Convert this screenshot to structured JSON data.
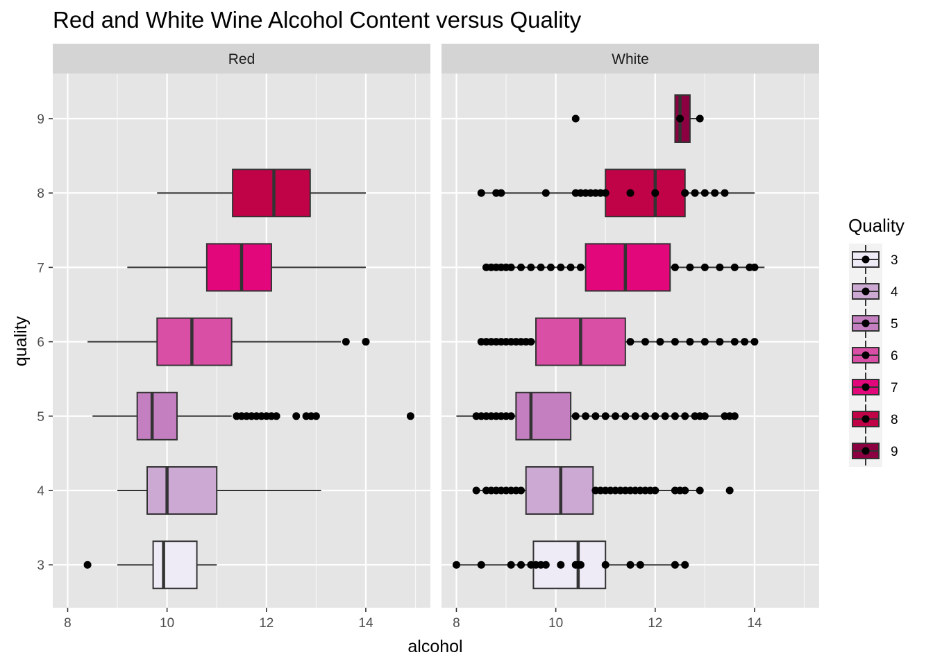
{
  "chart_data": {
    "type": "boxplot",
    "title": "Red and White Wine Alcohol Content versus Quality",
    "xlabel": "alcohol",
    "ylabel": "quality",
    "xlim": [
      7.7,
      15.3
    ],
    "x_ticks": [
      8,
      10,
      12,
      14
    ],
    "x_tick_labels": [
      "8",
      "10",
      "12",
      "14"
    ],
    "y_categories": [
      "3",
      "4",
      "5",
      "6",
      "7",
      "8",
      "9"
    ],
    "legend": {
      "title": "Quality",
      "placement": "right",
      "entries": [
        {
          "label": "3",
          "color": "#efebf6"
        },
        {
          "label": "4",
          "color": "#cba9d3"
        },
        {
          "label": "5",
          "color": "#c37fbf"
        },
        {
          "label": "6",
          "color": "#d94fa6"
        },
        {
          "label": "7",
          "color": "#e2077b"
        },
        {
          "label": "8",
          "color": "#c00246"
        },
        {
          "label": "9",
          "color": "#8a0041"
        }
      ]
    },
    "panels": [
      {
        "name": "Red",
        "boxes": [
          {
            "quality": "3",
            "whisker_low": 9.0,
            "q1": 9.72,
            "median": 9.93,
            "q3": 10.6,
            "whisker_high": 11.0,
            "outliers": [
              8.4
            ]
          },
          {
            "quality": "4",
            "whisker_low": 9.0,
            "q1": 9.6,
            "median": 10.0,
            "q3": 11.0,
            "whisker_high": 13.1,
            "outliers": []
          },
          {
            "quality": "5",
            "whisker_low": 8.5,
            "q1": 9.4,
            "median": 9.7,
            "q3": 10.2,
            "whisker_high": 11.3,
            "outliers": [
              11.4,
              11.5,
              11.6,
              11.7,
              11.8,
              11.9,
              12.0,
              12.1,
              12.2,
              12.6,
              12.8,
              12.9,
              13.0,
              14.9
            ]
          },
          {
            "quality": "6",
            "whisker_low": 8.4,
            "q1": 9.8,
            "median": 10.5,
            "q3": 11.3,
            "whisker_high": 13.5,
            "outliers": [
              13.6,
              14.0,
              14.0
            ]
          },
          {
            "quality": "7",
            "whisker_low": 9.2,
            "q1": 10.8,
            "median": 11.5,
            "q3": 12.1,
            "whisker_high": 14.0,
            "outliers": []
          },
          {
            "quality": "8",
            "whisker_low": 9.8,
            "q1": 11.32,
            "median": 12.15,
            "q3": 12.88,
            "whisker_high": 14.0,
            "outliers": []
          }
        ]
      },
      {
        "name": "White",
        "boxes": [
          {
            "quality": "3",
            "whisker_low": 8.0,
            "q1": 9.55,
            "median": 10.45,
            "q3": 11.0,
            "whisker_high": 12.6,
            "outliers": [
              8.0,
              8.5,
              9.1,
              9.3,
              9.5,
              9.6,
              9.7,
              9.8,
              10.1,
              10.4,
              10.45,
              10.5,
              11.0,
              11.5,
              11.7,
              12.4,
              12.6
            ]
          },
          {
            "quality": "4",
            "whisker_low": 8.4,
            "q1": 9.4,
            "median": 10.1,
            "q3": 10.75,
            "whisker_high": 12.9,
            "outliers": [
              8.4,
              8.6,
              8.7,
              8.8,
              8.9,
              9.0,
              9.1,
              9.2,
              9.3,
              10.8,
              10.9,
              11.0,
              11.1,
              11.2,
              11.3,
              11.4,
              11.5,
              11.6,
              11.7,
              11.8,
              11.9,
              12.0,
              12.4,
              12.5,
              12.6,
              12.9,
              13.5
            ]
          },
          {
            "quality": "5",
            "whisker_low": 8.0,
            "q1": 9.2,
            "median": 9.5,
            "q3": 10.3,
            "whisker_high": 13.6,
            "outliers": [
              8.4,
              8.5,
              8.6,
              8.7,
              8.8,
              8.9,
              9.0,
              9.1,
              10.4,
              10.6,
              10.8,
              11.0,
              11.2,
              11.4,
              11.6,
              11.8,
              12.0,
              12.2,
              12.4,
              12.6,
              12.8,
              12.9,
              13.0,
              13.4,
              13.5,
              13.6
            ]
          },
          {
            "quality": "6",
            "whisker_low": 8.5,
            "q1": 9.6,
            "median": 10.5,
            "q3": 11.4,
            "whisker_high": 14.0,
            "outliers": [
              8.5,
              8.6,
              8.7,
              8.8,
              8.9,
              9.0,
              9.1,
              9.2,
              9.3,
              9.4,
              9.5,
              11.5,
              11.8,
              12.1,
              12.4,
              12.7,
              13.0,
              13.3,
              13.6,
              13.8,
              14.0
            ]
          },
          {
            "quality": "7",
            "whisker_low": 8.6,
            "q1": 10.6,
            "median": 11.4,
            "q3": 12.3,
            "whisker_high": 14.2,
            "outliers": [
              8.6,
              8.7,
              8.8,
              8.9,
              9.0,
              9.1,
              9.3,
              9.5,
              9.7,
              9.9,
              10.1,
              10.3,
              10.5,
              12.4,
              12.7,
              13.0,
              13.3,
              13.6,
              13.9,
              14.0
            ]
          },
          {
            "quality": "8",
            "whisker_low": 8.5,
            "q1": 11.0,
            "median": 12.0,
            "q3": 12.6,
            "whisker_high": 14.0,
            "outliers": [
              8.5,
              8.8,
              8.9,
              9.8,
              10.4,
              10.5,
              10.6,
              10.7,
              10.8,
              10.9,
              11.0,
              11.5,
              12.0,
              12.6,
              12.8,
              13.0,
              13.2,
              13.4
            ]
          },
          {
            "quality": "9",
            "whisker_low": 12.4,
            "q1": 12.4,
            "median": 12.5,
            "q3": 12.7,
            "whisker_high": 12.9,
            "outliers": [
              10.4,
              12.5,
              12.9
            ]
          }
        ]
      }
    ]
  }
}
